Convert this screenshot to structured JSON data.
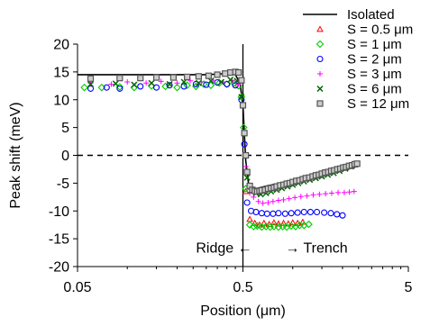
{
  "chart_data": {
    "type": "scatter",
    "xlabel": "Position (μm)",
    "ylabel": "Peak shift (meV)",
    "xscale": "log",
    "xlim": [
      0.05,
      5
    ],
    "ylim": [
      -20,
      20
    ],
    "x_ticks": [
      0.05,
      0.5,
      5
    ],
    "x_tick_labels": [
      "0.05",
      "0.5",
      "5"
    ],
    "y_ticks": [
      -20,
      -15,
      -10,
      -5,
      0,
      5,
      10,
      15,
      20
    ],
    "y_tick_labels": [
      "-20",
      "-15",
      "-10",
      "-5",
      "0",
      "5",
      "10",
      "15",
      "20"
    ],
    "grid": false,
    "legend_position": "top-right",
    "reference_lines": {
      "horizontal_dashed_at_y": 0,
      "vertical_solid_at_x": 0.5
    },
    "annotations": [
      {
        "text": "Ridge ←",
        "x": 0.26,
        "y": -16.5
      },
      {
        "text": "→ Trench",
        "x": 0.9,
        "y": -16.5
      }
    ],
    "series": [
      {
        "name": "Isolated",
        "style": "line",
        "color": "#000000",
        "x": [
          0.05,
          0.1,
          0.2,
          0.3,
          0.4,
          0.45,
          0.48,
          0.5,
          0.51,
          0.52,
          0.54,
          0.57,
          0.6,
          0.7,
          0.9,
          1.2,
          1.6,
          2.0,
          2.3,
          2.5
        ],
        "y": [
          14.5,
          14.5,
          14.5,
          14.5,
          14.7,
          14.5,
          13,
          9,
          4,
          -1,
          -5,
          -6.3,
          -6,
          -5.5,
          -4.8,
          -4,
          -3.2,
          -2.5,
          -1.8,
          -1.2
        ]
      },
      {
        "name": "S = 0.5 μm",
        "marker": "triangle",
        "color": "#ff0000",
        "x": [
          0.52,
          0.55,
          0.59,
          0.63,
          0.67,
          0.72,
          0.77,
          0.82,
          0.88,
          0.94,
          1.0,
          1.07,
          1.15
        ],
        "y": [
          -6.5,
          -11.5,
          -12.2,
          -12.5,
          -12.2,
          -12.4,
          -12.1,
          -12.3,
          -12.2,
          -12.3,
          -12.1,
          -12.2,
          -12.0
        ]
      },
      {
        "name": "S = 1 μm",
        "marker": "diamond",
        "color": "#00cc00",
        "x": [
          0.055,
          0.07,
          0.09,
          0.11,
          0.14,
          0.17,
          0.2,
          0.23,
          0.26,
          0.29,
          0.32,
          0.36,
          0.4,
          0.44,
          0.47,
          0.49,
          0.505,
          0.52,
          0.55,
          0.58,
          0.61,
          0.65,
          0.69,
          0.73,
          0.77,
          0.82,
          0.87,
          0.92,
          0.98,
          1.04,
          1.1,
          1.17,
          1.25
        ],
        "y": [
          12.2,
          12.2,
          12.3,
          12.2,
          12.5,
          12.4,
          12.2,
          12.6,
          12.4,
          12.8,
          12.6,
          13.0,
          12.8,
          13.0,
          12.5,
          10.5,
          5,
          -6,
          -12.5,
          -12.8,
          -12.7,
          -12.9,
          -12.8,
          -12.9,
          -12.8,
          -12.9,
          -12.8,
          -12.9,
          -12.7,
          -12.8,
          -12.6,
          -12.6,
          -12.4
        ]
      },
      {
        "name": "S = 2 μm",
        "marker": "circle",
        "color": "#0000ff",
        "x": [
          0.06,
          0.075,
          0.09,
          0.12,
          0.15,
          0.18,
          0.22,
          0.26,
          0.3,
          0.35,
          0.4,
          0.45,
          0.49,
          0.51,
          0.53,
          0.56,
          0.6,
          0.65,
          0.7,
          0.76,
          0.82,
          0.9,
          0.98,
          1.07,
          1.17,
          1.28,
          1.4,
          1.55,
          1.7,
          1.85,
          2.0
        ],
        "y": [
          12.0,
          12.2,
          12.0,
          12.4,
          12.2,
          12.6,
          12.4,
          12.8,
          12.7,
          13.1,
          12.8,
          12.6,
          10,
          2,
          -8.5,
          -10.0,
          -10.2,
          -10.4,
          -10.5,
          -10.5,
          -10.4,
          -10.5,
          -10.4,
          -10.3,
          -10.2,
          -10.2,
          -10.2,
          -10.3,
          -10.4,
          -10.6,
          -10.8
        ]
      },
      {
        "name": "S = 3 μm",
        "marker": "plus",
        "color": "#ff00ff",
        "x": [
          0.06,
          0.08,
          0.1,
          0.13,
          0.16,
          0.2,
          0.24,
          0.28,
          0.33,
          0.38,
          0.43,
          0.47,
          0.5,
          0.52,
          0.55,
          0.58,
          0.62,
          0.66,
          0.71,
          0.76,
          0.82,
          0.88,
          0.95,
          1.03,
          1.12,
          1.22,
          1.33,
          1.45,
          1.58,
          1.72,
          1.88,
          2.05,
          2.2,
          2.35
        ],
        "y": [
          13.0,
          12.8,
          13.2,
          13.0,
          13.3,
          13.0,
          13.4,
          13.2,
          13.5,
          13.2,
          13.4,
          12.8,
          9,
          -2,
          -6.8,
          -7.5,
          -8.3,
          -8.6,
          -8.5,
          -8.3,
          -8.1,
          -8.0,
          -7.8,
          -7.6,
          -7.4,
          -7.3,
          -7.1,
          -7.0,
          -6.9,
          -6.8,
          -6.7,
          -6.7,
          -6.6,
          -6.5
        ]
      },
      {
        "name": "S = 6 μm",
        "marker": "x",
        "color": "#006600",
        "x": [
          0.06,
          0.085,
          0.11,
          0.14,
          0.18,
          0.22,
          0.27,
          0.32,
          0.37,
          0.42,
          0.46,
          0.49,
          0.51,
          0.53,
          0.56,
          0.6,
          0.64,
          0.69,
          0.74,
          0.8,
          0.86,
          0.93,
          1.0,
          1.08,
          1.17,
          1.27,
          1.38,
          1.5,
          1.63,
          1.77,
          1.92,
          2.08,
          2.25,
          2.4
        ],
        "y": [
          12.8,
          12.9,
          12.7,
          13.0,
          12.8,
          13.2,
          13.0,
          13.4,
          13.2,
          13.6,
          13.4,
          10.5,
          4,
          -4,
          -6.3,
          -6.8,
          -7.0,
          -6.8,
          -6.5,
          -6.2,
          -5.9,
          -5.6,
          -5.3,
          -5.0,
          -4.7,
          -4.4,
          -4.1,
          -3.8,
          -3.5,
          -3.2,
          -2.8,
          -2.4,
          -2.0,
          -1.6
        ]
      },
      {
        "name": "S = 12 μm",
        "marker": "square",
        "color": "#555555",
        "x": [
          0.06,
          0.09,
          0.12,
          0.15,
          0.19,
          0.23,
          0.27,
          0.31,
          0.35,
          0.39,
          0.42,
          0.45,
          0.47,
          0.49,
          0.5,
          0.51,
          0.52,
          0.53,
          0.55,
          0.57,
          0.59,
          0.61,
          0.63,
          0.65,
          0.68,
          0.71,
          0.74,
          0.77,
          0.8,
          0.84,
          0.88,
          0.92,
          0.96,
          1.0,
          1.05,
          1.1,
          1.15,
          1.2,
          1.26,
          1.32,
          1.38,
          1.44,
          1.5,
          1.57,
          1.64,
          1.71,
          1.78,
          1.86,
          1.94,
          2.02,
          2.1,
          2.19,
          2.28,
          2.37,
          2.45
        ],
        "y": [
          13.8,
          13.9,
          13.9,
          14.0,
          14.0,
          14.1,
          14.2,
          14.3,
          14.5,
          14.7,
          14.9,
          15.0,
          14.9,
          13.5,
          9,
          4,
          0,
          -3,
          -5.5,
          -6.2,
          -6.4,
          -6.5,
          -6.4,
          -6.3,
          -6.2,
          -6.0,
          -5.9,
          -5.8,
          -5.6,
          -5.4,
          -5.3,
          -5.1,
          -5.0,
          -4.8,
          -4.6,
          -4.5,
          -4.3,
          -4.1,
          -4.0,
          -3.8,
          -3.6,
          -3.5,
          -3.3,
          -3.1,
          -3.0,
          -2.8,
          -2.7,
          -2.5,
          -2.4,
          -2.2,
          -2.1,
          -1.9,
          -1.8,
          -1.6,
          -1.5
        ]
      }
    ]
  }
}
